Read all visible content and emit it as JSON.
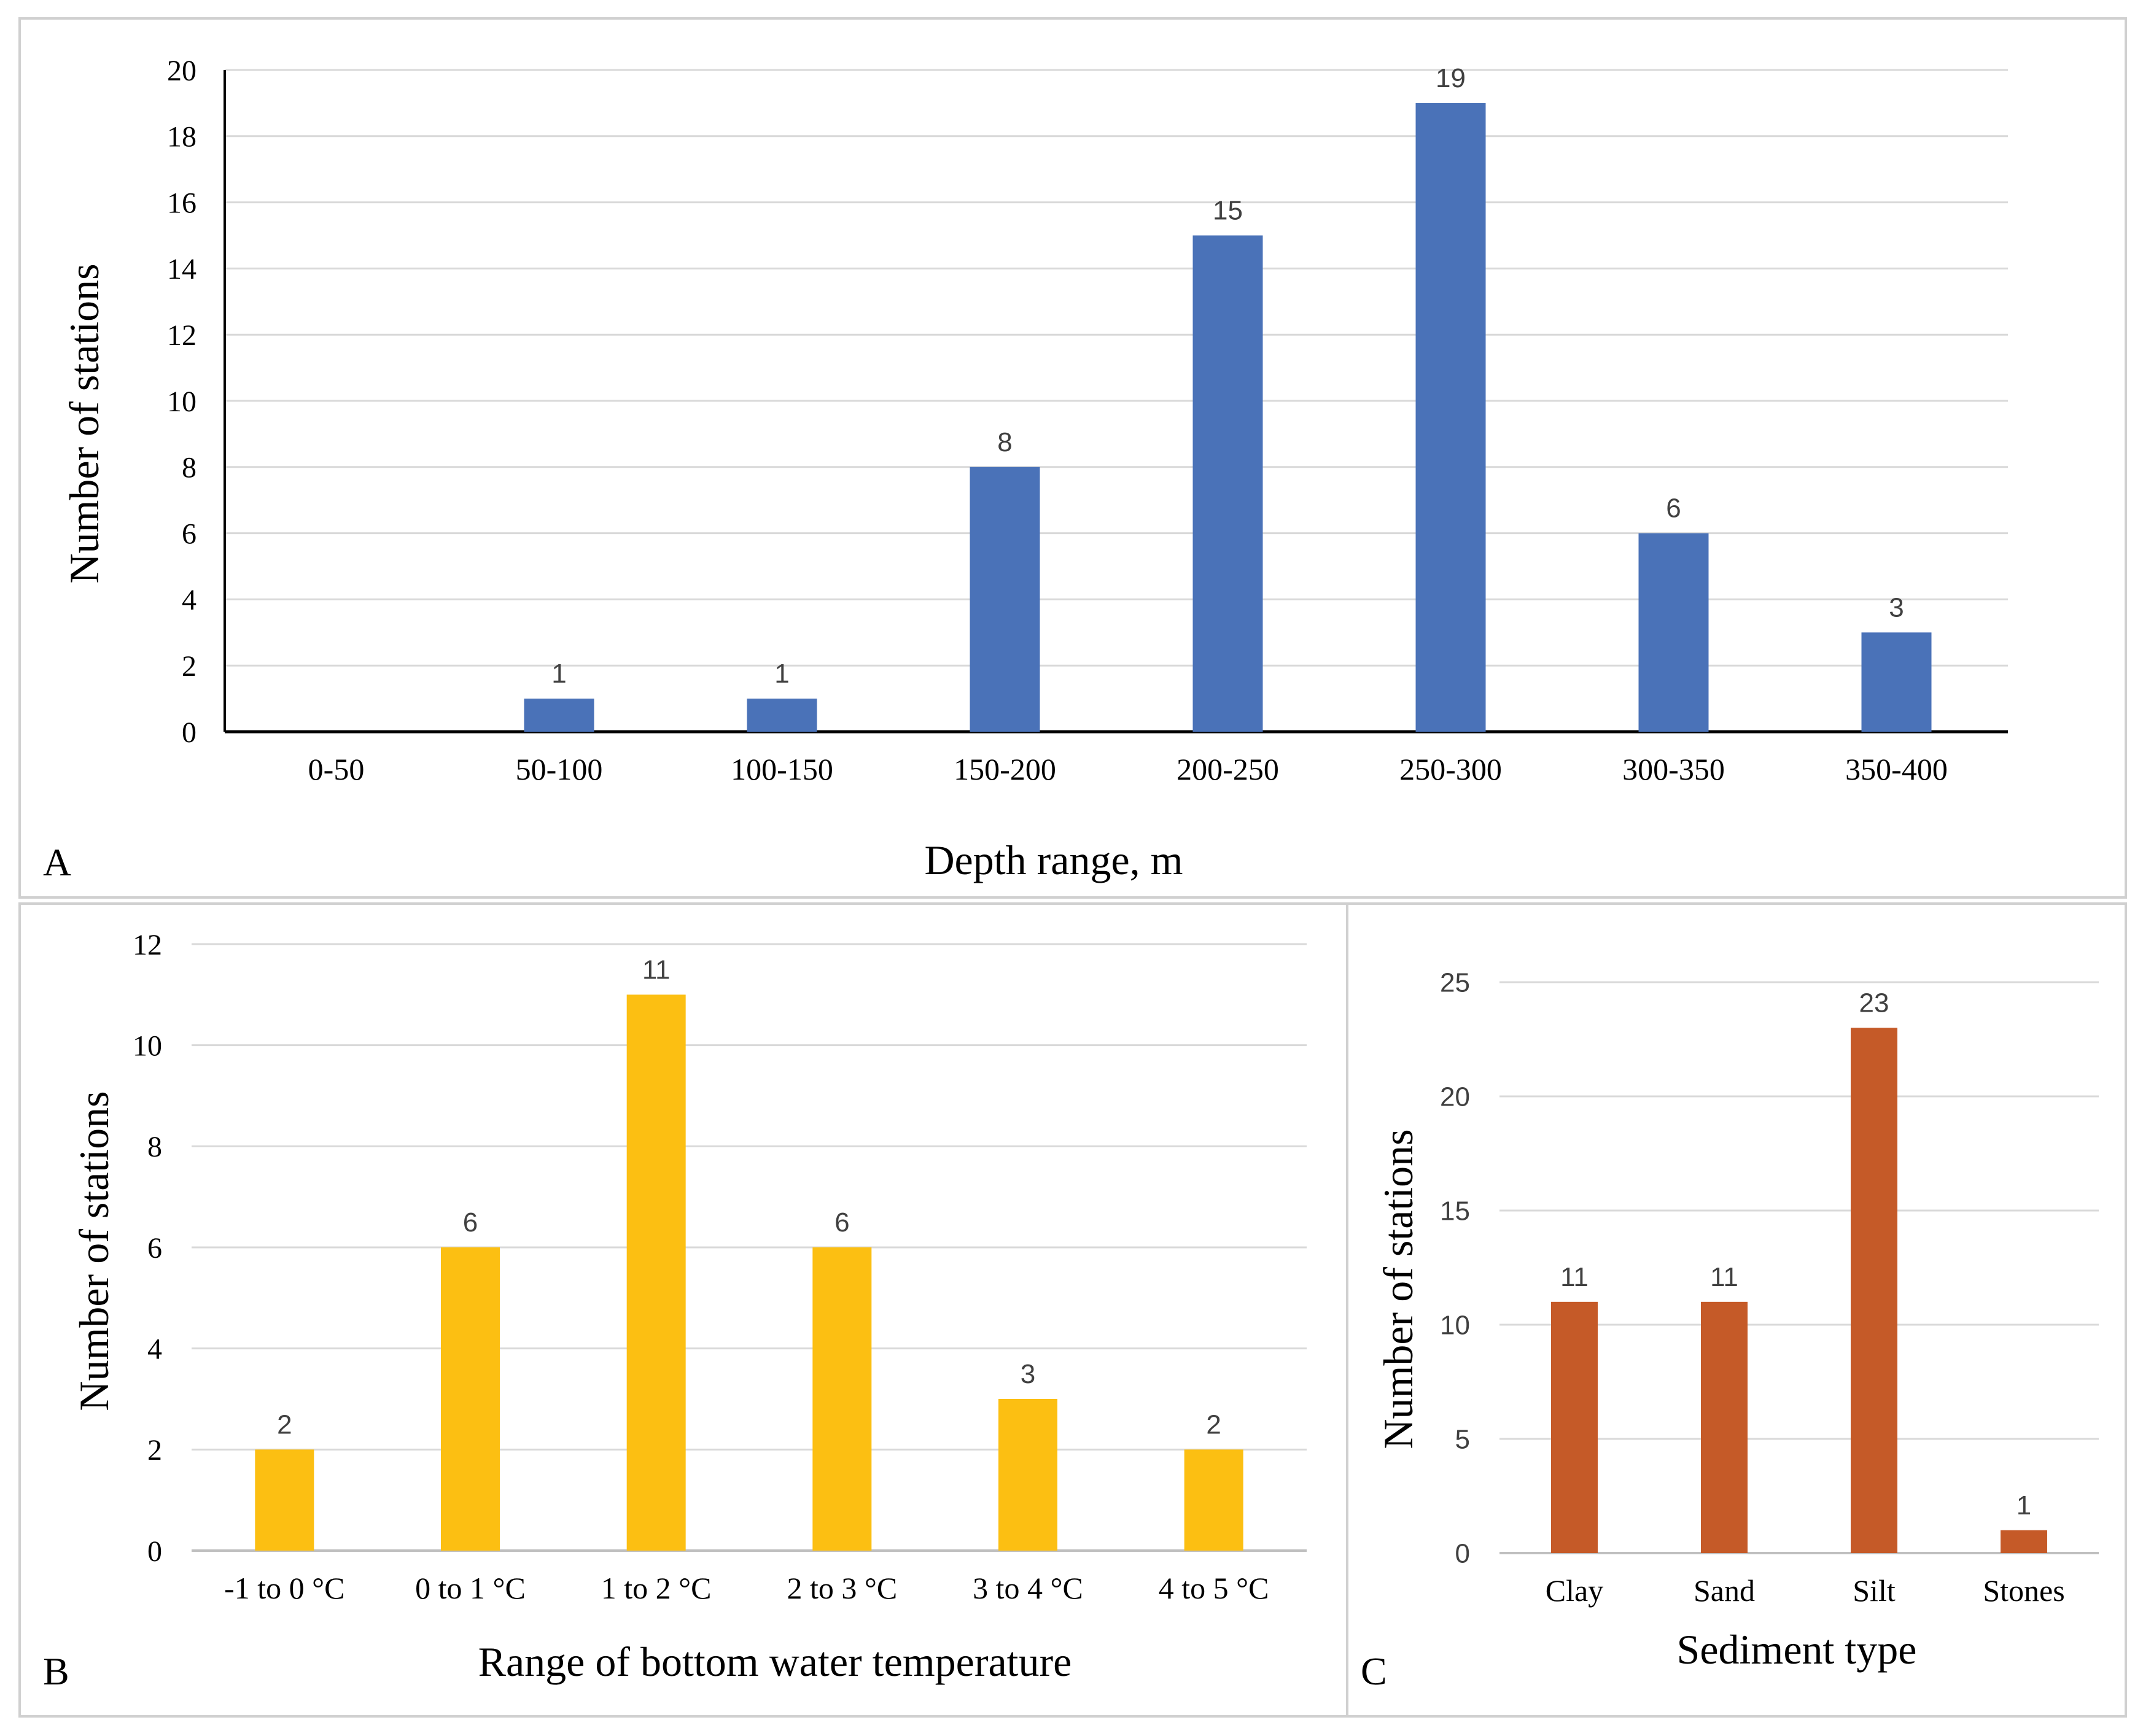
{
  "colors": {
    "panelA": "#4a72b8",
    "panelB": "#fcbf12",
    "panelC": "#c55a28",
    "grid": "#d9d9d9",
    "panel_border": "#d0d0d0"
  },
  "chart_data": [
    {
      "panel_label": "A",
      "type": "bar",
      "title": "",
      "xlabel": "Depth range, m",
      "ylabel": "Number of stations",
      "categories": [
        "0-50",
        "50-100",
        "100-150",
        "150-200",
        "200-250",
        "250-300",
        "300-350",
        "350-400"
      ],
      "values": [
        0,
        1,
        1,
        8,
        15,
        19,
        6,
        3
      ],
      "data_labels": [
        "",
        "1",
        "1",
        "8",
        "15",
        "19",
        "6",
        "3"
      ],
      "ylim": [
        0,
        20
      ],
      "yticks": [
        0,
        2,
        4,
        6,
        8,
        10,
        12,
        14,
        16,
        18,
        20
      ],
      "grid": true,
      "color": "#4a72b8"
    },
    {
      "panel_label": "B",
      "type": "bar",
      "title": "",
      "xlabel": "Range of bottom water temperature",
      "ylabel": "Number of stations",
      "categories": [
        "-1 to 0 °C",
        "0 to 1 °C",
        "1 to 2 °C",
        "2 to 3 °C",
        "3 to 4 °C",
        "4 to 5 °C"
      ],
      "values": [
        2,
        6,
        11,
        6,
        3,
        2
      ],
      "data_labels": [
        "2",
        "6",
        "11",
        "6",
        "3",
        "2"
      ],
      "ylim": [
        0,
        12
      ],
      "yticks": [
        0,
        2,
        4,
        6,
        8,
        10,
        12
      ],
      "grid": true,
      "color": "#fcbf12"
    },
    {
      "panel_label": "C",
      "type": "bar",
      "title": "",
      "xlabel": "Sediment type",
      "ylabel": "Number of stations",
      "categories": [
        "Clay",
        "Sand",
        "Silt",
        "Stones"
      ],
      "values": [
        11,
        11,
        23,
        1
      ],
      "data_labels": [
        "11",
        "11",
        "23",
        "1"
      ],
      "ylim": [
        0,
        25
      ],
      "yticks": [
        0,
        5,
        10,
        15,
        20,
        25
      ],
      "grid": true,
      "color": "#c55a28"
    }
  ]
}
